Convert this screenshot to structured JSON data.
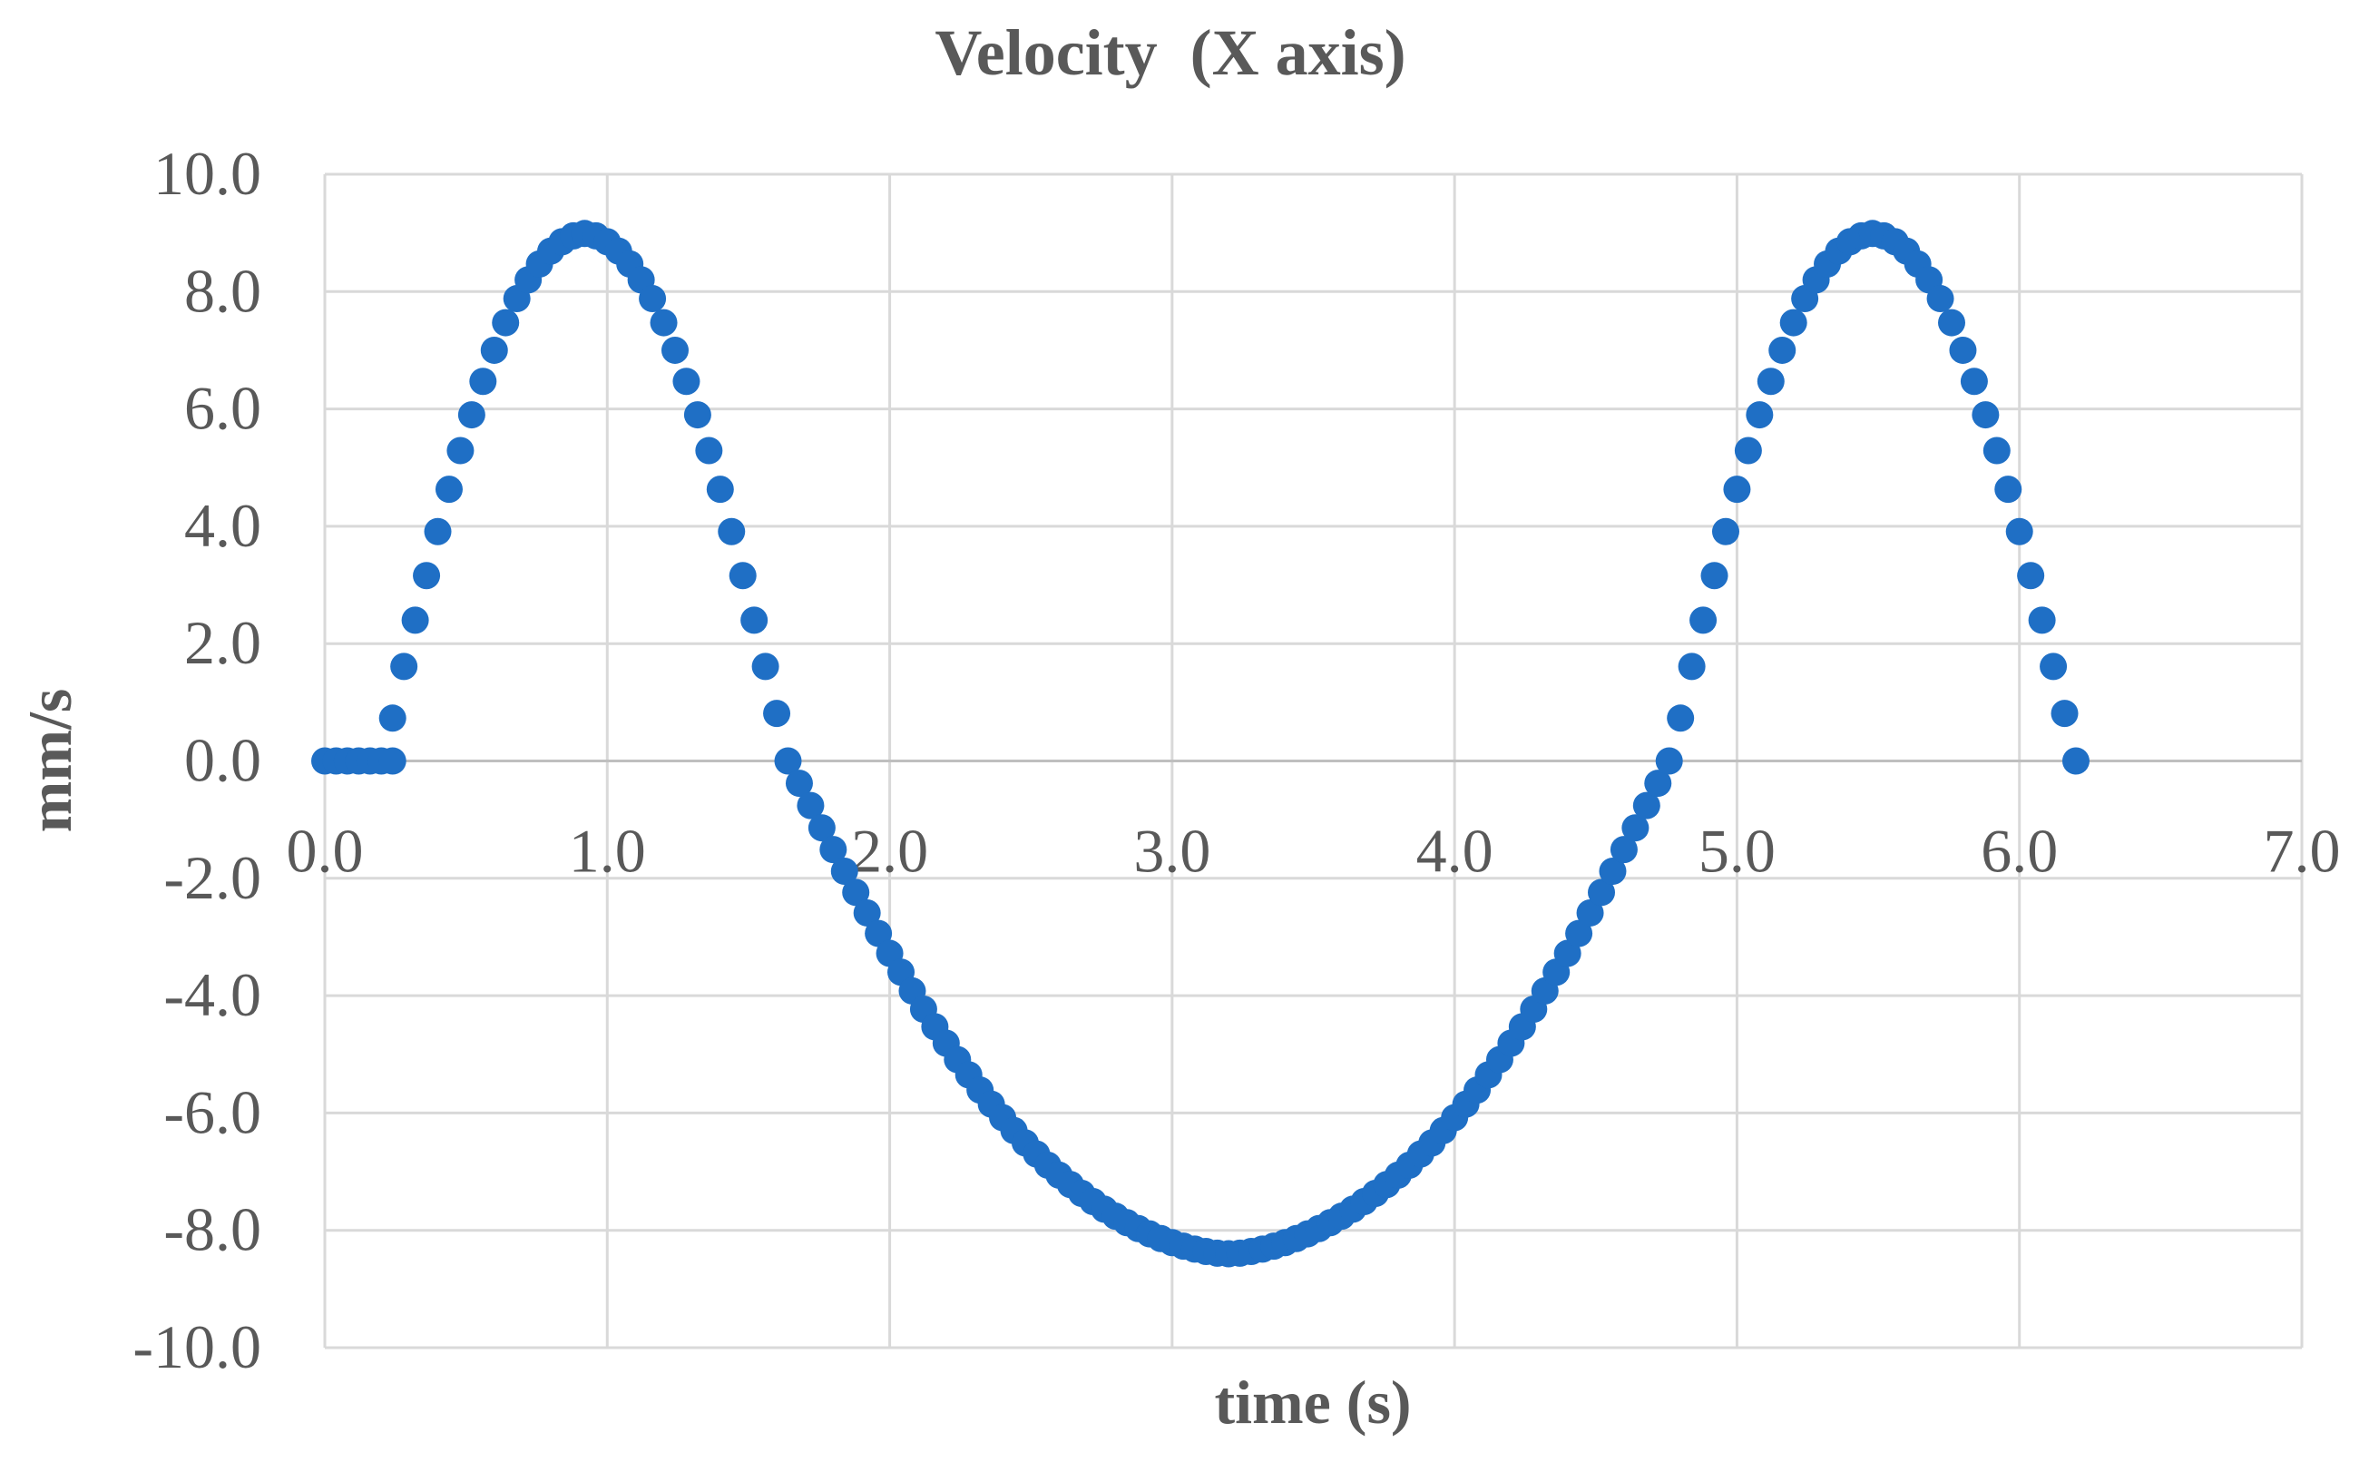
{
  "chart_data": {
    "type": "scatter",
    "title": "Velocity  (X axis)",
    "xlabel": "time (s)",
    "ylabel": "mm/s",
    "xlim": [
      0,
      7
    ],
    "ylim": [
      -10,
      10
    ],
    "xticks": [
      "0.0",
      "1.0",
      "2.0",
      "3.0",
      "4.0",
      "5.0",
      "6.0",
      "7.0"
    ],
    "yticks": [
      "10.0",
      "8.0",
      "6.0",
      "4.0",
      "2.0",
      "0.0",
      "-2.0",
      "-4.0",
      "-6.0",
      "-8.0",
      "-10.0"
    ],
    "grid": true,
    "legend": "none",
    "marker_color": "#1f6fc5",
    "sample_interval_s": 0.04,
    "points": [
      [
        0.0,
        0.0
      ],
      [
        0.04,
        0.0
      ],
      [
        0.08,
        0.0
      ],
      [
        0.12,
        0.0
      ],
      [
        0.16,
        0.0
      ],
      [
        0.2,
        0.0
      ],
      [
        0.24,
        0.0
      ],
      [
        0.24,
        0.73
      ],
      [
        0.28,
        1.61
      ],
      [
        0.32,
        2.4
      ],
      [
        0.36,
        3.16
      ],
      [
        0.4,
        3.91
      ],
      [
        0.44,
        4.63
      ],
      [
        0.48,
        5.29
      ],
      [
        0.52,
        5.9
      ],
      [
        0.56,
        6.47
      ],
      [
        0.6,
        7.0
      ],
      [
        0.64,
        7.47
      ],
      [
        0.68,
        7.88
      ],
      [
        0.72,
        8.2
      ],
      [
        0.76,
        8.47
      ],
      [
        0.8,
        8.69
      ],
      [
        0.84,
        8.85
      ],
      [
        0.88,
        8.95
      ],
      [
        0.92,
        8.99
      ],
      [
        0.96,
        8.95
      ],
      [
        1.0,
        8.85
      ],
      [
        1.04,
        8.69
      ],
      [
        1.08,
        8.47
      ],
      [
        1.12,
        8.2
      ],
      [
        1.16,
        7.88
      ],
      [
        1.2,
        7.47
      ],
      [
        1.24,
        7.0
      ],
      [
        1.28,
        6.47
      ],
      [
        1.32,
        5.9
      ],
      [
        1.36,
        5.29
      ],
      [
        1.4,
        4.63
      ],
      [
        1.44,
        3.91
      ],
      [
        1.48,
        3.16
      ],
      [
        1.52,
        2.4
      ],
      [
        1.56,
        1.61
      ],
      [
        1.6,
        0.81
      ],
      [
        1.64,
        0.0
      ],
      [
        1.68,
        -0.38
      ],
      [
        1.72,
        -0.76
      ],
      [
        1.76,
        -1.14
      ],
      [
        1.8,
        -1.51
      ],
      [
        1.84,
        -1.88
      ],
      [
        1.88,
        -2.24
      ],
      [
        1.92,
        -2.59
      ],
      [
        1.96,
        -2.94
      ],
      [
        2.0,
        -3.28
      ],
      [
        2.04,
        -3.6
      ],
      [
        2.08,
        -3.92
      ],
      [
        2.12,
        -4.23
      ],
      [
        2.16,
        -4.53
      ],
      [
        2.2,
        -4.81
      ],
      [
        2.24,
        -5.09
      ],
      [
        2.28,
        -5.35
      ],
      [
        2.32,
        -5.61
      ],
      [
        2.36,
        -5.85
      ],
      [
        2.4,
        -6.08
      ],
      [
        2.44,
        -6.3
      ],
      [
        2.48,
        -6.51
      ],
      [
        2.52,
        -6.7
      ],
      [
        2.56,
        -6.89
      ],
      [
        2.6,
        -7.06
      ],
      [
        2.64,
        -7.22
      ],
      [
        2.68,
        -7.37
      ],
      [
        2.72,
        -7.51
      ],
      [
        2.76,
        -7.64
      ],
      [
        2.8,
        -7.76
      ],
      [
        2.84,
        -7.87
      ],
      [
        2.88,
        -7.97
      ],
      [
        2.92,
        -8.06
      ],
      [
        2.96,
        -8.14
      ],
      [
        3.0,
        -8.21
      ],
      [
        3.04,
        -8.27
      ],
      [
        3.08,
        -8.32
      ],
      [
        3.12,
        -8.36
      ],
      [
        3.16,
        -8.39
      ],
      [
        3.2,
        -8.4
      ],
      [
        3.24,
        -8.39
      ],
      [
        3.28,
        -8.36
      ],
      [
        3.32,
        -8.32
      ],
      [
        3.36,
        -8.27
      ],
      [
        3.4,
        -8.21
      ],
      [
        3.44,
        -8.14
      ],
      [
        3.48,
        -8.06
      ],
      [
        3.52,
        -7.97
      ],
      [
        3.56,
        -7.87
      ],
      [
        3.6,
        -7.76
      ],
      [
        3.64,
        -7.64
      ],
      [
        3.68,
        -7.51
      ],
      [
        3.72,
        -7.37
      ],
      [
        3.76,
        -7.22
      ],
      [
        3.8,
        -7.06
      ],
      [
        3.84,
        -6.89
      ],
      [
        3.88,
        -6.7
      ],
      [
        3.92,
        -6.51
      ],
      [
        3.96,
        -6.3
      ],
      [
        4.0,
        -6.08
      ],
      [
        4.04,
        -5.85
      ],
      [
        4.08,
        -5.61
      ],
      [
        4.12,
        -5.35
      ],
      [
        4.16,
        -5.09
      ],
      [
        4.2,
        -4.81
      ],
      [
        4.24,
        -4.53
      ],
      [
        4.28,
        -4.23
      ],
      [
        4.32,
        -3.92
      ],
      [
        4.36,
        -3.6
      ],
      [
        4.4,
        -3.28
      ],
      [
        4.44,
        -2.94
      ],
      [
        4.48,
        -2.59
      ],
      [
        4.52,
        -2.24
      ],
      [
        4.56,
        -1.88
      ],
      [
        4.6,
        -1.51
      ],
      [
        4.64,
        -1.14
      ],
      [
        4.68,
        -0.76
      ],
      [
        4.72,
        -0.38
      ],
      [
        4.76,
        0.0
      ],
      [
        4.8,
        0.73
      ],
      [
        4.84,
        1.61
      ],
      [
        4.88,
        2.4
      ],
      [
        4.92,
        3.16
      ],
      [
        4.96,
        3.91
      ],
      [
        5.0,
        4.63
      ],
      [
        5.04,
        5.29
      ],
      [
        5.08,
        5.9
      ],
      [
        5.12,
        6.47
      ],
      [
        5.16,
        7.0
      ],
      [
        5.2,
        7.47
      ],
      [
        5.24,
        7.88
      ],
      [
        5.28,
        8.2
      ],
      [
        5.32,
        8.47
      ],
      [
        5.36,
        8.69
      ],
      [
        5.4,
        8.85
      ],
      [
        5.44,
        8.95
      ],
      [
        5.48,
        8.99
      ],
      [
        5.52,
        8.95
      ],
      [
        5.56,
        8.85
      ],
      [
        5.6,
        8.69
      ],
      [
        5.64,
        8.47
      ],
      [
        5.68,
        8.2
      ],
      [
        5.72,
        7.88
      ],
      [
        5.76,
        7.47
      ],
      [
        5.8,
        7.0
      ],
      [
        5.84,
        6.47
      ],
      [
        5.88,
        5.9
      ],
      [
        5.92,
        5.29
      ],
      [
        5.96,
        4.63
      ],
      [
        6.0,
        3.91
      ],
      [
        6.04,
        3.16
      ],
      [
        6.08,
        2.4
      ],
      [
        6.12,
        1.61
      ],
      [
        6.16,
        0.81
      ],
      [
        6.2,
        0.0
      ]
    ]
  }
}
